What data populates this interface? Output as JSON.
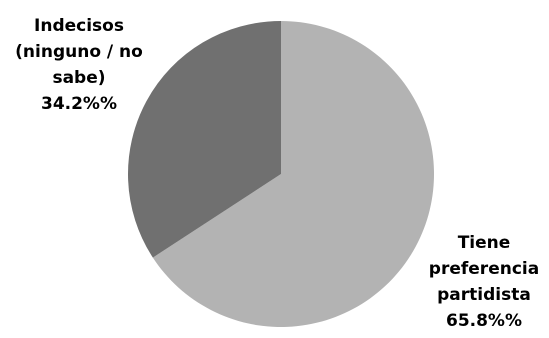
{
  "chart_data": {
    "type": "pie",
    "slices": [
      {
        "label_lines": [
          "Tiene",
          "preferencia",
          "partidista",
          "65.8%%"
        ],
        "value": 65.8,
        "color": "#b3b3b3"
      },
      {
        "label_lines": [
          "Indecisos",
          "(ninguno / no",
          "sabe)",
          "34.2%%"
        ],
        "value": 34.2,
        "color": "#707070"
      }
    ],
    "start": "12 o'clock",
    "direction": "clockwise",
    "legend": "none",
    "labels": "outside, bold"
  }
}
